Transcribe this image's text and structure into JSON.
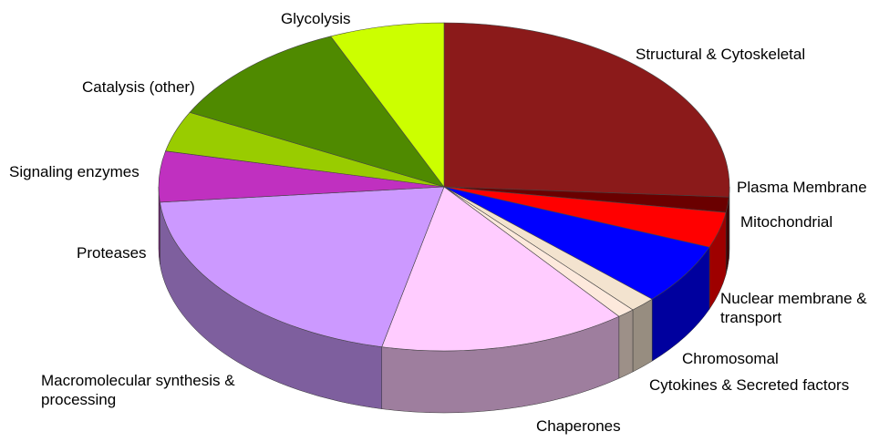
{
  "chart_data": {
    "type": "pie3d",
    "categories": [
      "Structural & Cytoskeletal",
      "Plasma Membrane",
      "Mitochondrial",
      "Nuclear membrane & transport",
      "Chromosomal",
      "Cytokines & Secreted factors",
      "Chaperones",
      "Macromolecular synthesis & processing",
      "Proteases",
      "Signaling enzymes",
      "Catalysis (other)",
      "Glycolysis"
    ],
    "values": [
      26,
      1.5,
      3.5,
      6,
      1.5,
      1,
      14,
      20,
      5,
      4,
      11,
      6.5
    ],
    "colors": [
      "#8b1a1a",
      "#6a0000",
      "#ff0000",
      "#0000ff",
      "#f3e3cf",
      "#fde9dc",
      "#ffccff",
      "#cc99ff",
      "#c030c0",
      "#99cc00",
      "#4f8a00",
      "#ccff00"
    ]
  }
}
